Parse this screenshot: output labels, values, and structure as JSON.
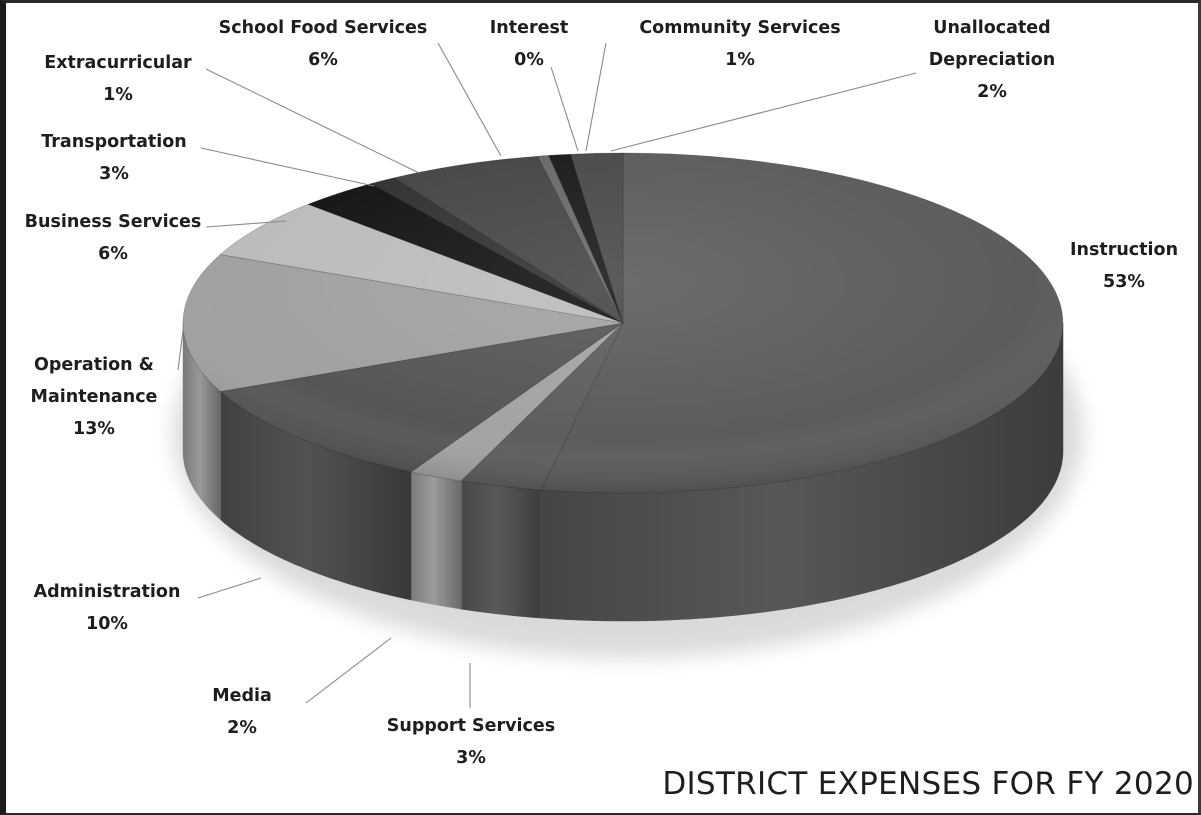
{
  "chart_data": {
    "type": "pie",
    "title": "DISTRICT EXPENSES FOR FY 2020",
    "three_d": true,
    "start_angle_deg": 0,
    "direction": "clockwise",
    "slices": [
      {
        "label": "Instruction",
        "label_lines": [
          "Instruction",
          "53%"
        ],
        "pct_text": "53%",
        "value": 53.0,
        "color": "#5c5c5c"
      },
      {
        "label": "Support Services",
        "label_lines": [
          "Support Services",
          "3%"
        ],
        "pct_text": "3%",
        "value": 3.0,
        "color": "#5e5e5e"
      },
      {
        "label": "Media",
        "label_lines": [
          "Media",
          "2%"
        ],
        "pct_text": "2%",
        "value": 2.0,
        "color": "#a3a3a3"
      },
      {
        "label": "Administration",
        "label_lines": [
          "Administration",
          "10%"
        ],
        "pct_text": "10%",
        "value": 10.4,
        "color": "#565656"
      },
      {
        "label": "Operation & Maintenance",
        "label_lines": [
          "Operation &",
          "Maintenance",
          "13%"
        ],
        "pct_text": "13%",
        "value": 13.2,
        "color": "#a1a1a1"
      },
      {
        "label": "Business Services",
        "label_lines": [
          "Business Services",
          "6%"
        ],
        "pct_text": "6%",
        "value": 5.7,
        "color": "#bcbcbc"
      },
      {
        "label": "Transportation",
        "label_lines": [
          "Transportation",
          "3%"
        ],
        "pct_text": "3%",
        "value": 3.0,
        "color": "#161616"
      },
      {
        "label": "Extracurricular",
        "label_lines": [
          "Extracurricular",
          "1%"
        ],
        "pct_text": "1%",
        "value": 1.0,
        "color": "#333333"
      },
      {
        "label": "School Food Services",
        "label_lines": [
          "School Food Services",
          "6%"
        ],
        "pct_text": "6%",
        "value": 5.6,
        "color": "#474747"
      },
      {
        "label": "Interest",
        "label_lines": [
          "Interest",
          "0%"
        ],
        "pct_text": "0%",
        "value": 0.4,
        "color": "#6a6a6a"
      },
      {
        "label": "Community Services",
        "label_lines": [
          "Community Services",
          "1%"
        ],
        "pct_text": "1%",
        "value": 0.8,
        "color": "#1c1c1c"
      },
      {
        "label": "Unallocated Depreciation",
        "label_lines": [
          "Unallocated",
          "Depreciation",
          "2%"
        ],
        "pct_text": "2%",
        "value": 1.9,
        "color": "#4a4a4a"
      }
    ]
  }
}
